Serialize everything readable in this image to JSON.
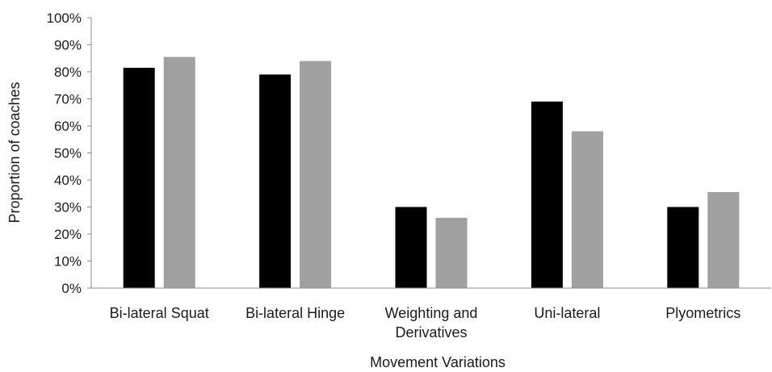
{
  "chart_data": {
    "type": "bar",
    "categories": [
      "Bi-lateral Squat",
      "Bi-lateral Hinge",
      "Weighting and Derivatives",
      "Uni-lateral",
      "Plyometrics"
    ],
    "category_lines": [
      [
        "Bi-lateral Squat"
      ],
      [
        "Bi-lateral Hinge"
      ],
      [
        "Weighting and",
        "Derivatives"
      ],
      [
        "Uni-lateral"
      ],
      [
        "Plyometrics"
      ]
    ],
    "series": [
      {
        "color": "#000000",
        "values": [
          81.5,
          79,
          30,
          69,
          30
        ]
      },
      {
        "color": "#a0a0a0",
        "values": [
          85.5,
          84,
          26,
          58,
          35.5
        ]
      }
    ],
    "xlabel": "Movement Variations",
    "ylabel": "Proportion of coaches",
    "ylim": [
      0,
      100
    ],
    "yticks": [
      "0%",
      "10%",
      "20%",
      "30%",
      "40%",
      "50%",
      "60%",
      "70%",
      "80%",
      "90%",
      "100%"
    ],
    "grid": false,
    "legend": "none"
  }
}
